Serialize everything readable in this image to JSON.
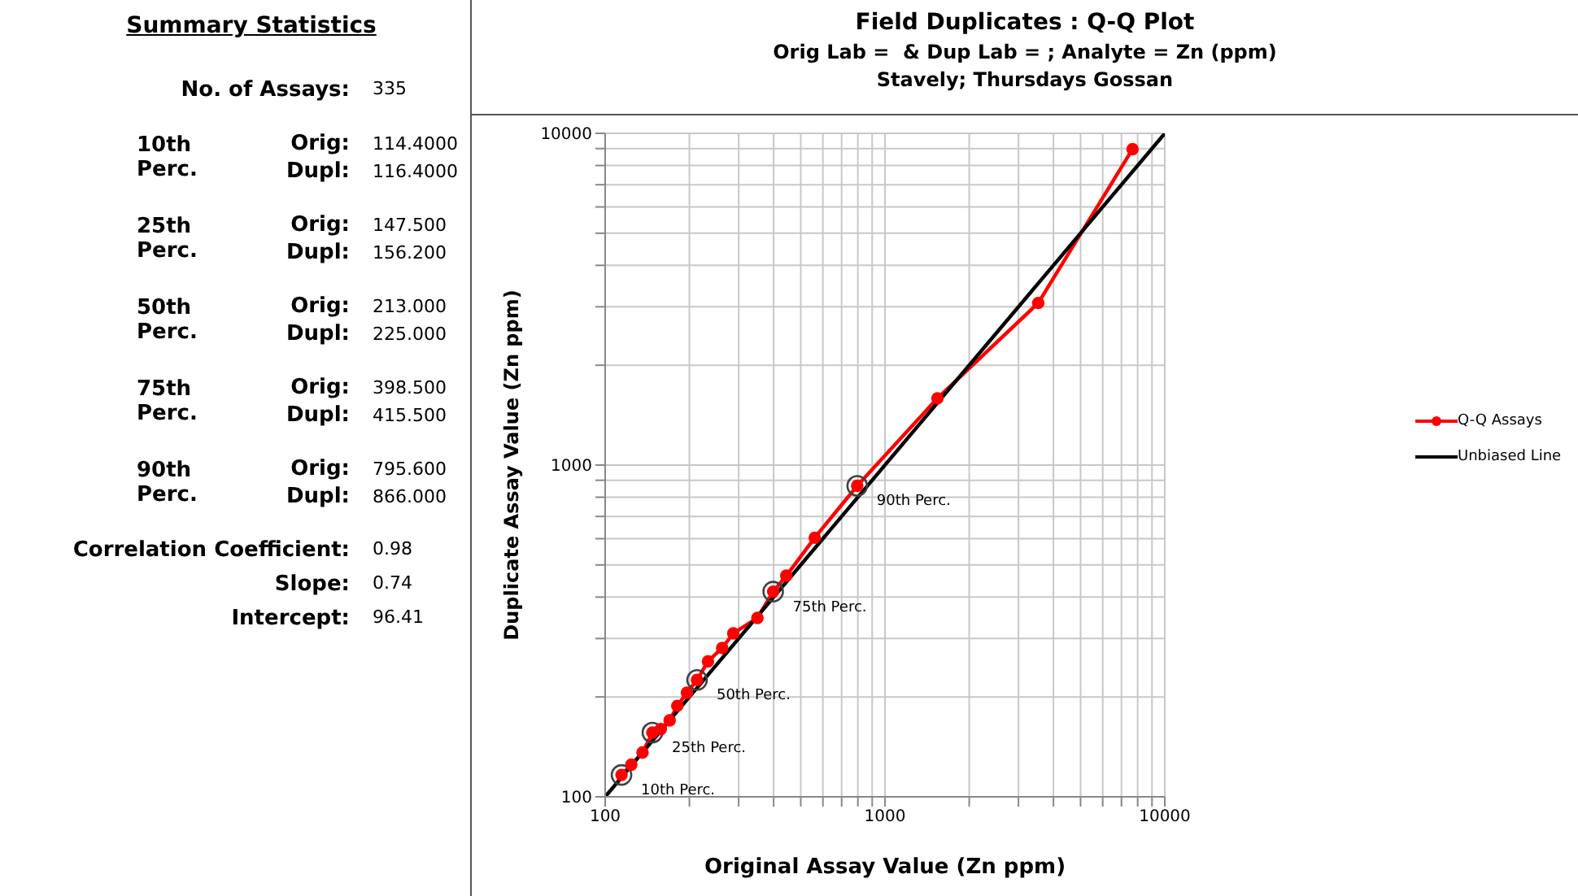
{
  "chart_data": [
    {
      "type": "other",
      "title": "Summary Statistics",
      "annotations": [
        "No. of Assays:",
        "335",
        "10th Perc.",
        "Orig:",
        "114.4000",
        "Dupl:",
        "116.4000",
        "25th Perc.",
        "Orig:",
        "147.500",
        "Dupl:",
        "156.200",
        "50th Perc.",
        "Orig:",
        "213.000",
        "Dupl:",
        "225.000",
        "75th Perc.",
        "Orig:",
        "398.500",
        "Dupl:",
        "415.500",
        "90th Perc.",
        "Orig:",
        "795.600",
        "Dupl:",
        "866.000",
        "Correlation Coefficient:",
        "0.98",
        "Slope:",
        "0.74",
        "Intercept:",
        "96.41"
      ]
    },
    {
      "type": "line",
      "title": "Field Duplicates : Q-Q Plot",
      "subtitle": "Orig Lab =  & Dup Lab = ; Analyte = Zn (ppm)\nStavely; Thursdays Gossan",
      "xlabel": "Original Assay Value (Zn ppm)",
      "ylabel": "Duplicate Assay Value (Zn ppm)",
      "log": "xy",
      "grid": true,
      "legend": "right",
      "xlim": [
        100,
        10000
      ],
      "ylim": [
        100,
        10000
      ],
      "xticks": [
        100,
        {
          "value": 200,
          "label": null
        },
        {
          "value": 300,
          "label": null
        },
        {
          "value": 400,
          "label": null
        },
        {
          "value": 500,
          "label": null
        },
        {
          "value": 600,
          "label": null
        },
        {
          "value": 700,
          "label": null
        },
        {
          "value": 800,
          "label": null
        },
        {
          "value": 900,
          "label": null
        },
        1000,
        {
          "value": 2000,
          "label": null
        },
        {
          "value": 3000,
          "label": null
        },
        {
          "value": 4000,
          "label": null
        },
        {
          "value": 5000,
          "label": null
        },
        {
          "value": 6000,
          "label": null
        },
        {
          "value": 7000,
          "label": null
        },
        {
          "value": 8000,
          "label": null
        },
        {
          "value": 9000,
          "label": null
        },
        10000
      ],
      "yticks": [
        100,
        {
          "value": 200,
          "label": null
        },
        {
          "value": 300,
          "label": null
        },
        {
          "value": 400,
          "label": null
        },
        {
          "value": 500,
          "label": null
        },
        {
          "value": 600,
          "label": null
        },
        {
          "value": 700,
          "label": null
        },
        {
          "value": 800,
          "label": null
        },
        {
          "value": 900,
          "label": null
        },
        1000,
        {
          "value": 2000,
          "label": null
        },
        {
          "value": 3000,
          "label": null
        },
        {
          "value": 4000,
          "label": null
        },
        {
          "value": 5000,
          "label": null
        },
        {
          "value": 6000,
          "label": null
        },
        {
          "value": 7000,
          "label": null
        },
        {
          "value": 8000,
          "label": null
        },
        {
          "value": 9000,
          "label": null
        },
        10000
      ],
      "series": [
        {
          "name": "Q-Q Assays",
          "type": "line",
          "color": "#ff0000",
          "marker": "circle",
          "x": [
            114.4,
            124,
            136,
            147.5,
            158,
            170,
            181,
            196,
            213,
            233,
            262,
            287,
            350,
            398.5,
            444,
            561,
            795.6,
            1540,
            3530,
            7670
          ],
          "values": [
            116.4,
            125,
            136,
            156.2,
            160,
            170,
            188,
            206,
            225,
            256,
            281,
            311,
            346,
            415.5,
            464,
            604,
            866,
            1590,
            3080,
            8960
          ]
        },
        {
          "name": "Unbiased Line",
          "type": "line",
          "color": "#000000",
          "marker": "none",
          "x": [
            100,
            10000
          ],
          "values": [
            100,
            10000
          ]
        },
        {
          "type": "scatter",
          "color": "#404040",
          "marker": "circle",
          "x": [
            114.4,
            147.5,
            213,
            398.5,
            795.6
          ],
          "values": [
            116.4,
            156.2,
            225,
            415.5,
            866
          ]
        }
      ],
      "annotations": [
        {
          "text": "10th Perc.",
          "x": 114.4,
          "y": 116.4
        },
        {
          "text": "25th Perc.",
          "x": 147.5,
          "y": 156.2
        },
        {
          "text": "50th Perc.",
          "x": 213,
          "y": 225
        },
        {
          "text": "75th Perc.",
          "x": 398.5,
          "y": 415.5
        },
        {
          "text": "90th Perc.",
          "x": 795.6,
          "y": 866
        }
      ]
    }
  ]
}
